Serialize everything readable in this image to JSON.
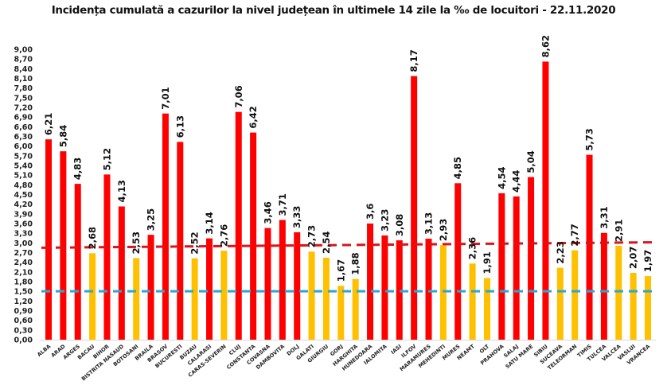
{
  "chart_data": {
    "type": "bar",
    "title": "Incidența cumulată a cazurilor la nivel județean în ultimele 14 zile la ‰ de locuitori - 22.11.2020",
    "xlabel": "",
    "ylabel": "",
    "ylim": [
      0,
      9
    ],
    "yticks": [
      "0,00",
      "0,30",
      "0,60",
      "0,90",
      "1,20",
      "1,50",
      "1,80",
      "2,10",
      "2,40",
      "2,70",
      "3,00",
      "3,30",
      "3,60",
      "3,90",
      "4,20",
      "4,50",
      "4,80",
      "5,10",
      "5,40",
      "5,70",
      "6,00",
      "6,30",
      "6,60",
      "6,90",
      "7,20",
      "7,50",
      "7,80",
      "8,10",
      "8,40",
      "8,70",
      "9,00"
    ],
    "grid": false,
    "categories": [
      "ALBA",
      "ARAD",
      "ARGES",
      "BACAU",
      "BIHOR",
      "BISTRITA NASAUD",
      "BOTOSANI",
      "BRAILA",
      "BRASOV",
      "BUCURESTI",
      "BUZAU",
      "CALARASI",
      "CARAS-SEVERIN",
      "CLUJ",
      "CONSTANTA",
      "COVASNA",
      "DAMBOVITA",
      "DOLJ",
      "GALATI",
      "GIURGIU",
      "GORJ",
      "HARGHITA",
      "HUNEDOARA",
      "IALOMITA",
      "IASI",
      "ILFOV",
      "MARAMURES",
      "MEHEDINTI",
      "MURES",
      "NEAMT",
      "OLT",
      "PRAHOVA",
      "SALAJ",
      "SATU MARE",
      "SIBIU",
      "SUCEAVA",
      "TELEORMAN",
      "TIMIS",
      "TULCEA",
      "VALCEA",
      "VASLUI",
      "VRANCEA"
    ],
    "values": [
      6.21,
      5.84,
      4.83,
      2.68,
      5.12,
      4.13,
      2.53,
      3.25,
      7.01,
      6.13,
      2.52,
      3.14,
      2.76,
      7.06,
      6.42,
      3.46,
      3.71,
      3.33,
      2.73,
      2.54,
      1.67,
      1.88,
      3.6,
      3.23,
      3.08,
      8.17,
      3.13,
      2.93,
      4.85,
      2.36,
      1.91,
      4.54,
      4.44,
      5.04,
      8.62,
      2.23,
      2.77,
      5.73,
      3.31,
      2.91,
      2.07,
      1.97
    ],
    "data_labels": [
      "6,21",
      "5,84",
      "4,83",
      "2,68",
      "5,12",
      "4,13",
      "2,53",
      "3,25",
      "7,01",
      "6,13",
      "2,52",
      "3,14",
      "2,76",
      "7,06",
      "6,42",
      "3,46",
      "3,71",
      "3,33",
      "2,73",
      "2,54",
      "1,67",
      "1,88",
      "3,6",
      "3,23",
      "3,08",
      "8,17",
      "3,13",
      "2,93",
      "4,85",
      "2,36",
      "1,91",
      "4,54",
      "4,44",
      "5,04",
      "8,62",
      "2,23",
      "2,77",
      "5,73",
      "3,31",
      "2,91",
      "2,07",
      "1,97"
    ],
    "threshold_colors": {
      "above": "#ff0000",
      "below": "#ffc000"
    },
    "color_threshold": 3.0,
    "reference_lines": [
      {
        "name": "red-threshold-line",
        "from": 2.85,
        "to": 3.02,
        "color": "#d9141b",
        "style": "dashed"
      },
      {
        "name": "blue-threshold-line",
        "from": 1.5,
        "to": 1.5,
        "color": "#2aa7d6",
        "style": "dashed"
      }
    ],
    "legend": "none"
  }
}
